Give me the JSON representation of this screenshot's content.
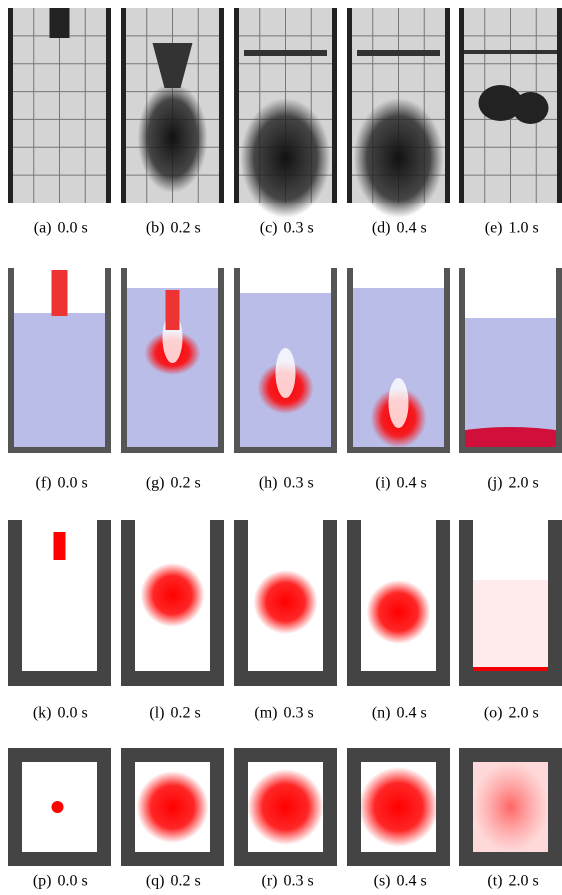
{
  "figure": {
    "rows": [
      [
        {
          "label": "(a)",
          "time": "0.0 s"
        },
        {
          "label": "(b)",
          "time": "0.2 s"
        },
        {
          "label": "(c)",
          "time": "0.3 s"
        },
        {
          "label": "(d)",
          "time": "0.4 s"
        },
        {
          "label": "(e)",
          "time": "1.0 s"
        }
      ],
      [
        {
          "label": "(f)",
          "time": "0.0 s"
        },
        {
          "label": "(g)",
          "time": "0.2 s"
        },
        {
          "label": "(h)",
          "time": "0.3 s"
        },
        {
          "label": "(i)",
          "time": "0.4 s"
        },
        {
          "label": "(j)",
          "time": "2.0 s"
        }
      ],
      [
        {
          "label": "(k)",
          "time": "0.0 s"
        },
        {
          "label": "(l)",
          "time": "0.2 s"
        },
        {
          "label": "(m)",
          "time": "0.3 s"
        },
        {
          "label": "(n)",
          "time": "0.4 s"
        },
        {
          "label": "(o)",
          "time": "2.0 s"
        }
      ],
      [
        {
          "label": "(p)",
          "time": "0.0 s"
        },
        {
          "label": "(q)",
          "time": "0.2 s"
        },
        {
          "label": "(r)",
          "time": "0.3 s"
        },
        {
          "label": "(s)",
          "time": "0.4 s"
        },
        {
          "label": "(t)",
          "time": "2.0 s"
        }
      ]
    ]
  }
}
